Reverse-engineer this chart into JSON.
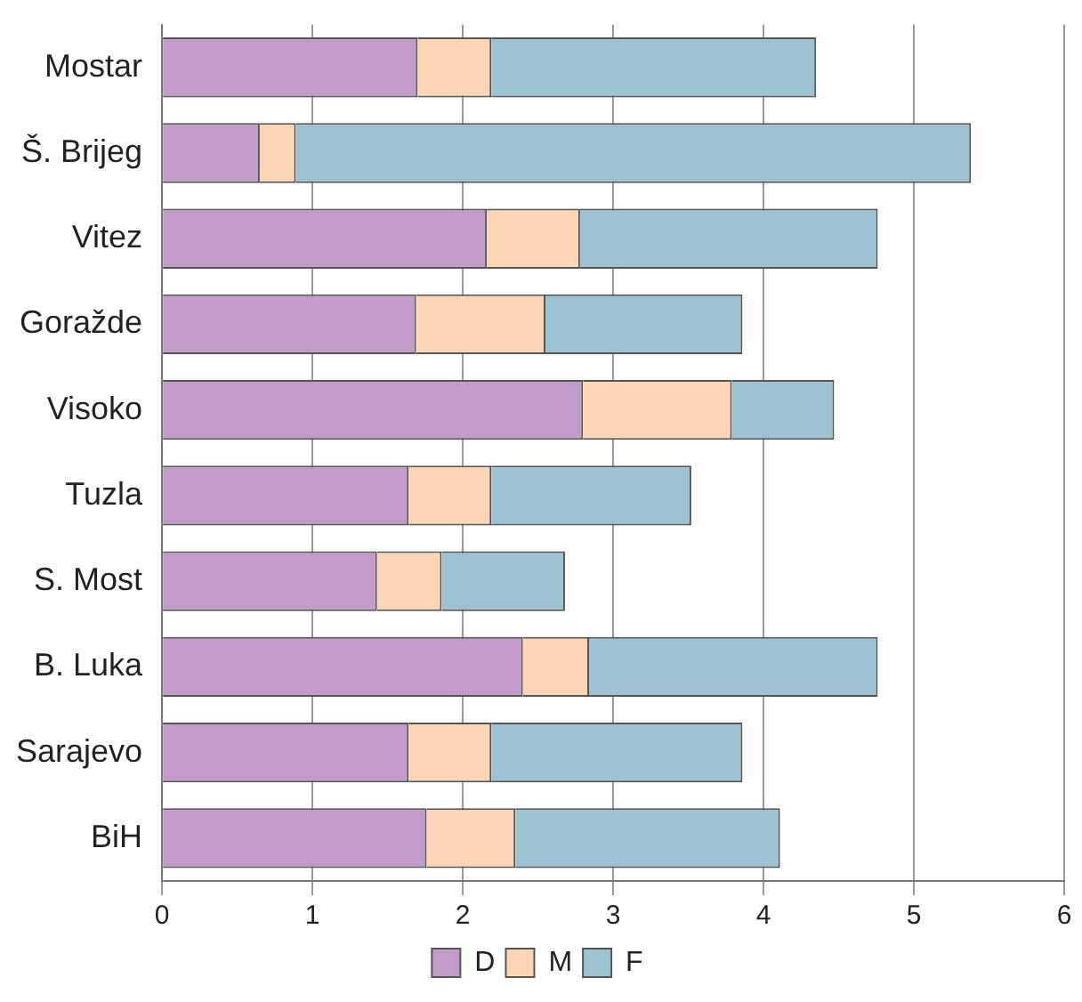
{
  "chart_data": {
    "type": "bar",
    "orientation": "horizontal",
    "stacked": true,
    "categories": [
      "Mostar",
      "Š. Brijeg",
      "Vitez",
      "Goražde",
      "Visoko",
      "Tuzla",
      "S. Most",
      "B. Luka",
      "Sarajevo",
      "BiH"
    ],
    "series": [
      {
        "name": "D",
        "color": "#c39bc9",
        "values": [
          1.7,
          0.65,
          2.16,
          1.69,
          2.8,
          1.64,
          1.43,
          2.4,
          1.64,
          1.76
        ]
      },
      {
        "name": "M",
        "color": "#fcd5b5",
        "values": [
          0.49,
          0.24,
          0.62,
          0.86,
          0.99,
          0.55,
          0.43,
          0.44,
          0.55,
          0.59
        ]
      },
      {
        "name": "F",
        "color": "#9dc3d3",
        "values": [
          2.16,
          4.49,
          1.98,
          1.31,
          0.68,
          1.33,
          0.82,
          1.92,
          1.67,
          1.76
        ]
      }
    ],
    "xlim": [
      0,
      6
    ],
    "xticks": [
      0,
      1,
      2,
      3,
      4,
      5,
      6
    ],
    "grid": "x",
    "legend": "bottom"
  }
}
